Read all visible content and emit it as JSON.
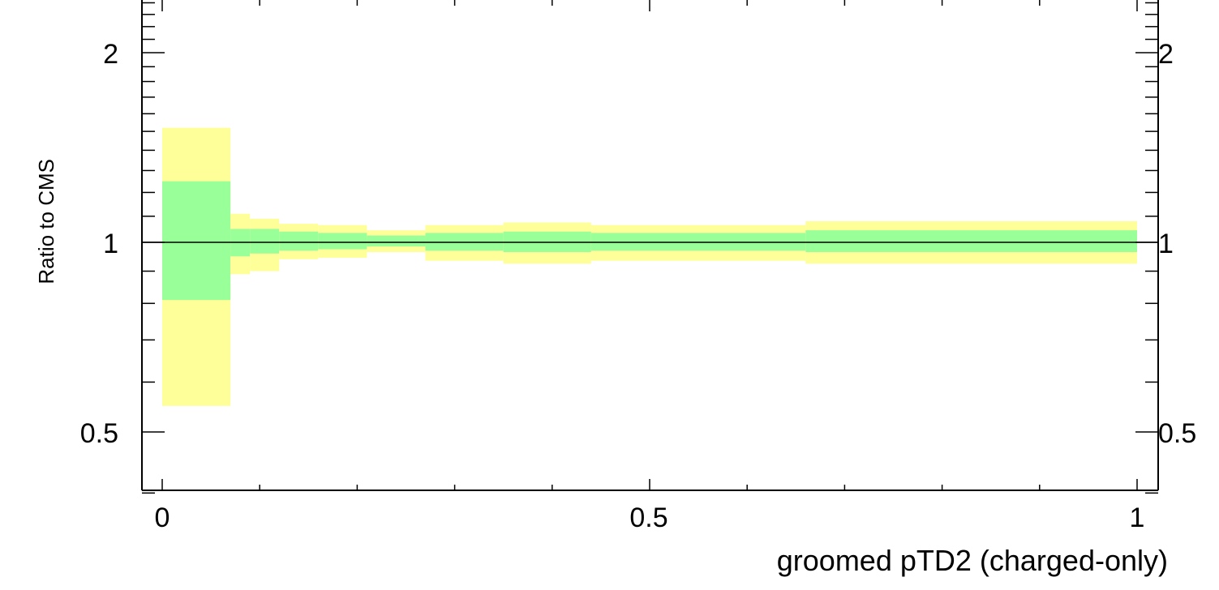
{
  "chart_data": {
    "type": "area",
    "xlabel": "groomed pTD2 (charged-only)",
    "ylabel": "Ratio to CMS",
    "xlim": [
      -0.02,
      1.02
    ],
    "ylim": [
      0.36,
      2.55
    ],
    "log_y": true,
    "x_tick_labels": [
      "0",
      "0.5",
      "1"
    ],
    "y_tick_labels": [
      "0.5",
      "1",
      "2"
    ],
    "reference_line": 1.0,
    "colors": {
      "inner_band": "#99ff99",
      "outer_band": "#ffff99",
      "line": "#000000"
    },
    "bins": [
      {
        "x_low": 0.0,
        "x_high": 0.07,
        "inner_low": 0.81,
        "inner_high": 1.25,
        "outer_low": 0.55,
        "outer_high": 1.52
      },
      {
        "x_low": 0.07,
        "x_high": 0.09,
        "inner_low": 0.95,
        "inner_high": 1.05,
        "outer_low": 0.89,
        "outer_high": 1.11
      },
      {
        "x_low": 0.09,
        "x_high": 0.12,
        "inner_low": 0.96,
        "inner_high": 1.05,
        "outer_low": 0.9,
        "outer_high": 1.09
      },
      {
        "x_low": 0.12,
        "x_high": 0.16,
        "inner_low": 0.97,
        "inner_high": 1.04,
        "outer_low": 0.94,
        "outer_high": 1.07
      },
      {
        "x_low": 0.16,
        "x_high": 0.21,
        "inner_low": 0.975,
        "inner_high": 1.035,
        "outer_low": 0.945,
        "outer_high": 1.065
      },
      {
        "x_low": 0.21,
        "x_high": 0.27,
        "inner_low": 0.985,
        "inner_high": 1.025,
        "outer_low": 0.965,
        "outer_high": 1.045
      },
      {
        "x_low": 0.27,
        "x_high": 0.35,
        "inner_low": 0.97,
        "inner_high": 1.035,
        "outer_low": 0.935,
        "outer_high": 1.065
      },
      {
        "x_low": 0.35,
        "x_high": 0.44,
        "inner_low": 0.965,
        "inner_high": 1.04,
        "outer_low": 0.925,
        "outer_high": 1.075
      },
      {
        "x_low": 0.44,
        "x_high": 0.66,
        "inner_low": 0.97,
        "inner_high": 1.035,
        "outer_low": 0.935,
        "outer_high": 1.065
      },
      {
        "x_low": 0.66,
        "x_high": 1.0,
        "inner_low": 0.965,
        "inner_high": 1.045,
        "outer_low": 0.925,
        "outer_high": 1.08
      }
    ]
  }
}
